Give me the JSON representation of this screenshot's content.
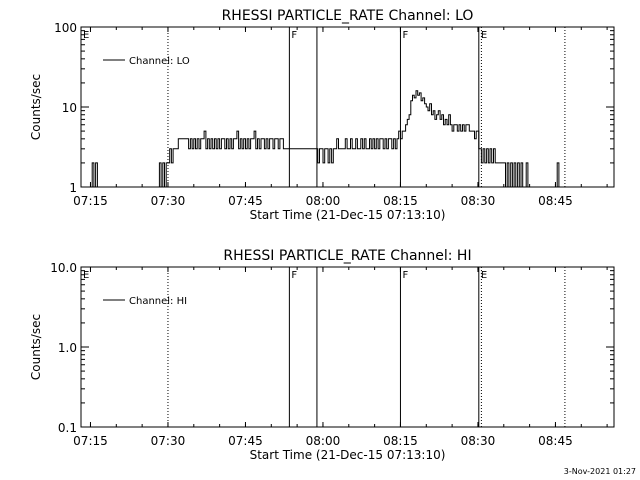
{
  "chart_data": [
    {
      "type": "line",
      "title": "RHESSI PARTICLE_RATE Channel: LO",
      "xlabel": "Start Time (21-Dec-15 07:13:10)",
      "ylabel": "Counts/sec",
      "yscale": "log",
      "ylim": [
        1,
        100
      ],
      "xlim": [
        "07:13:10",
        "08:56:20"
      ],
      "x_ticks": [
        "07:15",
        "07:30",
        "07:45",
        "08:00",
        "08:15",
        "08:30",
        "08:45"
      ],
      "y_ticks": [
        "1",
        "10",
        "100"
      ],
      "grid": false,
      "legend": {
        "position": "top-left",
        "entries": [
          "Channel: LO"
        ]
      },
      "markers": [
        {
          "time": "07:13:10",
          "label": "E",
          "style": "dotted"
        },
        {
          "time": "07:30:00",
          "label": "",
          "style": "dotted"
        },
        {
          "time": "07:53:30",
          "label": "F",
          "style": "solid"
        },
        {
          "time": "07:58:50",
          "label": "",
          "style": "solid"
        },
        {
          "time": "08:15:00",
          "label": "F",
          "style": "solid"
        },
        {
          "time": "08:30:10",
          "label": "E",
          "style": "solid"
        },
        {
          "time": "08:30:40",
          "label": "",
          "style": "dotted"
        },
        {
          "time": "08:46:50",
          "label": "",
          "style": "dotted"
        }
      ],
      "series": [
        {
          "name": "Channel: LO",
          "points": [
            [
              "07:13:10",
              1
            ],
            [
              "07:15:00",
              1
            ],
            [
              "07:15:20",
              2
            ],
            [
              "07:15:40",
              1
            ],
            [
              "07:16:00",
              2
            ],
            [
              "07:16:20",
              1
            ],
            [
              "07:28:00",
              1
            ],
            [
              "07:28:20",
              2
            ],
            [
              "07:28:40",
              1
            ],
            [
              "07:29:00",
              2
            ],
            [
              "07:29:20",
              1
            ],
            [
              "07:29:40",
              2
            ],
            [
              "07:30:00",
              2
            ],
            [
              "07:30:20",
              3
            ],
            [
              "07:30:40",
              2
            ],
            [
              "07:31:00",
              3
            ],
            [
              "07:31:40",
              3
            ],
            [
              "07:32:00",
              4
            ],
            [
              "07:33:00",
              4
            ],
            [
              "07:33:40",
              4
            ],
            [
              "07:34:00",
              3
            ],
            [
              "07:34:20",
              4
            ],
            [
              "07:34:40",
              3
            ],
            [
              "07:35:00",
              4
            ],
            [
              "07:35:20",
              3
            ],
            [
              "07:35:40",
              4
            ],
            [
              "07:36:00",
              3
            ],
            [
              "07:36:20",
              4
            ],
            [
              "07:36:40",
              4
            ],
            [
              "07:37:00",
              5
            ],
            [
              "07:37:20",
              3
            ],
            [
              "07:37:40",
              4
            ],
            [
              "07:38:00",
              3
            ],
            [
              "07:38:20",
              4
            ],
            [
              "07:38:40",
              3
            ],
            [
              "07:39:00",
              4
            ],
            [
              "07:39:20",
              3
            ],
            [
              "07:39:40",
              4
            ],
            [
              "07:40:00",
              3
            ],
            [
              "07:40:20",
              4
            ],
            [
              "07:40:40",
              4
            ],
            [
              "07:41:00",
              3
            ],
            [
              "07:41:20",
              4
            ],
            [
              "07:41:40",
              3
            ],
            [
              "07:42:00",
              4
            ],
            [
              "07:42:20",
              3
            ],
            [
              "07:42:40",
              4
            ],
            [
              "07:43:00",
              4
            ],
            [
              "07:43:20",
              5
            ],
            [
              "07:43:40",
              3
            ],
            [
              "07:44:00",
              4
            ],
            [
              "07:44:20",
              3
            ],
            [
              "07:44:40",
              4
            ],
            [
              "07:45:00",
              3
            ],
            [
              "07:45:20",
              4
            ],
            [
              "07:45:40",
              3
            ],
            [
              "07:46:00",
              4
            ],
            [
              "07:46:20",
              4
            ],
            [
              "07:46:40",
              5
            ],
            [
              "07:47:00",
              3
            ],
            [
              "07:47:20",
              4
            ],
            [
              "07:47:40",
              3
            ],
            [
              "07:48:00",
              4
            ],
            [
              "07:48:20",
              4
            ],
            [
              "07:48:40",
              3
            ],
            [
              "07:49:00",
              4
            ],
            [
              "07:49:20",
              3
            ],
            [
              "07:49:40",
              4
            ],
            [
              "07:50:00",
              4
            ],
            [
              "07:50:20",
              3
            ],
            [
              "07:50:40",
              4
            ],
            [
              "07:51:00",
              4
            ],
            [
              "07:51:20",
              3
            ],
            [
              "07:51:40",
              4
            ],
            [
              "07:52:00",
              4
            ],
            [
              "07:52:20",
              3
            ],
            [
              "07:52:40",
              3
            ],
            [
              "07:53:30",
              3
            ],
            [
              "07:58:50",
              3
            ],
            [
              "07:59:00",
              2
            ],
            [
              "07:59:20",
              3
            ],
            [
              "07:59:40",
              3
            ],
            [
              "08:00:00",
              2
            ],
            [
              "08:00:20",
              3
            ],
            [
              "08:00:40",
              3
            ],
            [
              "08:01:00",
              2
            ],
            [
              "08:01:20",
              3
            ],
            [
              "08:01:40",
              2
            ],
            [
              "08:02:00",
              3
            ],
            [
              "08:02:20",
              3
            ],
            [
              "08:02:40",
              4
            ],
            [
              "08:03:00",
              3
            ],
            [
              "08:03:20",
              3
            ],
            [
              "08:03:40",
              3
            ],
            [
              "08:04:00",
              3
            ],
            [
              "08:04:20",
              4
            ],
            [
              "08:04:40",
              3
            ],
            [
              "08:05:00",
              3
            ],
            [
              "08:05:20",
              4
            ],
            [
              "08:05:40",
              3
            ],
            [
              "08:06:00",
              3
            ],
            [
              "08:06:20",
              4
            ],
            [
              "08:06:40",
              3
            ],
            [
              "08:07:00",
              3
            ],
            [
              "08:07:20",
              4
            ],
            [
              "08:07:40",
              3
            ],
            [
              "08:08:00",
              4
            ],
            [
              "08:08:20",
              3
            ],
            [
              "08:08:40",
              3
            ],
            [
              "08:09:00",
              4
            ],
            [
              "08:09:20",
              3
            ],
            [
              "08:09:40",
              4
            ],
            [
              "08:10:00",
              3
            ],
            [
              "08:10:20",
              4
            ],
            [
              "08:10:40",
              3
            ],
            [
              "08:11:00",
              4
            ],
            [
              "08:11:20",
              4
            ],
            [
              "08:11:40",
              3
            ],
            [
              "08:12:00",
              4
            ],
            [
              "08:12:20",
              3
            ],
            [
              "08:12:40",
              4
            ],
            [
              "08:13:00",
              4
            ],
            [
              "08:13:20",
              3
            ],
            [
              "08:13:40",
              4
            ],
            [
              "08:14:00",
              3
            ],
            [
              "08:14:20",
              4
            ],
            [
              "08:14:40",
              5
            ],
            [
              "08:15:00",
              4
            ],
            [
              "08:15:20",
              5
            ],
            [
              "08:15:40",
              5
            ],
            [
              "08:16:00",
              6
            ],
            [
              "08:16:20",
              7
            ],
            [
              "08:16:40",
              8
            ],
            [
              "08:17:00",
              12
            ],
            [
              "08:17:20",
              14
            ],
            [
              "08:17:40",
              13
            ],
            [
              "08:18:00",
              16
            ],
            [
              "08:18:20",
              14
            ],
            [
              "08:18:40",
              15
            ],
            [
              "08:19:00",
              12
            ],
            [
              "08:19:20",
              13
            ],
            [
              "08:19:40",
              11
            ],
            [
              "08:20:00",
              10
            ],
            [
              "08:20:20",
              9
            ],
            [
              "08:20:40",
              11
            ],
            [
              "08:21:00",
              8
            ],
            [
              "08:21:20",
              9
            ],
            [
              "08:21:40",
              7
            ],
            [
              "08:22:00",
              8
            ],
            [
              "08:22:20",
              9
            ],
            [
              "08:22:40",
              7
            ],
            [
              "08:23:00",
              8
            ],
            [
              "08:23:20",
              6
            ],
            [
              "08:23:40",
              7
            ],
            [
              "08:24:00",
              6
            ],
            [
              "08:24:20",
              8
            ],
            [
              "08:24:40",
              6
            ],
            [
              "08:25:00",
              5
            ],
            [
              "08:25:20",
              6
            ],
            [
              "08:25:40",
              6
            ],
            [
              "08:26:00",
              5
            ],
            [
              "08:26:20",
              6
            ],
            [
              "08:26:40",
              5
            ],
            [
              "08:27:00",
              6
            ],
            [
              "08:27:20",
              5
            ],
            [
              "08:27:40",
              6
            ],
            [
              "08:28:00",
              6
            ],
            [
              "08:28:20",
              5
            ],
            [
              "08:28:40",
              5
            ],
            [
              "08:29:00",
              5
            ],
            [
              "08:29:20",
              4
            ],
            [
              "08:29:40",
              5
            ],
            [
              "08:30:10",
              3
            ],
            [
              "08:30:20",
              3
            ],
            [
              "08:30:40",
              2
            ],
            [
              "08:31:00",
              3
            ],
            [
              "08:31:20",
              2
            ],
            [
              "08:31:40",
              3
            ],
            [
              "08:32:00",
              2
            ],
            [
              "08:32:20",
              3
            ],
            [
              "08:32:40",
              2
            ],
            [
              "08:33:00",
              3
            ],
            [
              "08:33:20",
              2
            ],
            [
              "08:33:40",
              2
            ],
            [
              "08:34:00",
              2
            ],
            [
              "08:34:20",
              2
            ],
            [
              "08:35:00",
              2
            ],
            [
              "08:35:20",
              1
            ],
            [
              "08:35:40",
              2
            ],
            [
              "08:36:00",
              1
            ],
            [
              "08:36:20",
              2
            ],
            [
              "08:36:40",
              1
            ],
            [
              "08:37:00",
              2
            ],
            [
              "08:37:20",
              1
            ],
            [
              "08:37:40",
              2
            ],
            [
              "08:38:00",
              1
            ],
            [
              "08:38:20",
              2
            ],
            [
              "08:38:40",
              1
            ],
            [
              "08:39:00",
              1
            ],
            [
              "08:39:20",
              2
            ],
            [
              "08:39:40",
              1
            ],
            [
              "08:40:00",
              1
            ],
            [
              "08:45:00",
              1
            ],
            [
              "08:45:20",
              2
            ],
            [
              "08:45:40",
              1
            ],
            [
              "08:56:20",
              1
            ]
          ]
        }
      ]
    },
    {
      "type": "line",
      "title": "RHESSI PARTICLE_RATE Channel: HI",
      "xlabel": "Start Time (21-Dec-15 07:13:10)",
      "ylabel": "Counts/sec",
      "yscale": "log",
      "ylim": [
        0.1,
        10
      ],
      "xlim": [
        "07:13:10",
        "08:56:20"
      ],
      "x_ticks": [
        "07:15",
        "07:30",
        "07:45",
        "08:00",
        "08:15",
        "08:30",
        "08:45"
      ],
      "y_ticks": [
        "0.1",
        "1.0",
        "10.0"
      ],
      "grid": false,
      "legend": {
        "position": "top-left",
        "entries": [
          "Channel: HI"
        ]
      },
      "markers": [
        {
          "time": "07:13:10",
          "label": "E",
          "style": "dotted"
        },
        {
          "time": "07:30:00",
          "label": "",
          "style": "dotted"
        },
        {
          "time": "07:53:30",
          "label": "F",
          "style": "solid"
        },
        {
          "time": "07:58:50",
          "label": "",
          "style": "solid"
        },
        {
          "time": "08:15:00",
          "label": "F",
          "style": "solid"
        },
        {
          "time": "08:30:10",
          "label": "E",
          "style": "solid"
        },
        {
          "time": "08:30:40",
          "label": "",
          "style": "dotted"
        },
        {
          "time": "08:46:50",
          "label": "",
          "style": "dotted"
        }
      ],
      "series": [
        {
          "name": "Channel: HI",
          "points": []
        }
      ]
    }
  ],
  "footer": {
    "timestamp": "3-Nov-2021 01:27"
  }
}
